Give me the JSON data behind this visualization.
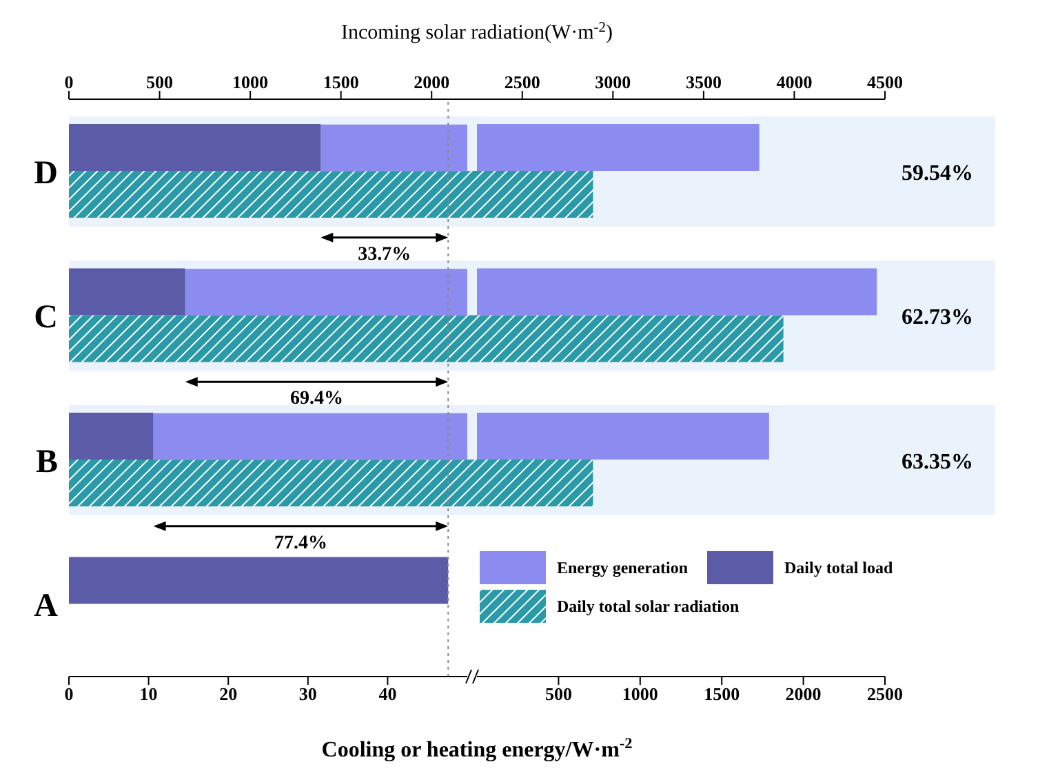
{
  "chart_data": [
    {
      "type": "bar",
      "orientation": "horizontal",
      "categories": [
        "D",
        "C",
        "B",
        "A"
      ],
      "series": [
        {
          "name": "Daily total load",
          "color": "#5b5ba8",
          "values": [
            31.6,
            14.6,
            10.6,
            47.6
          ]
        },
        {
          "name": "Daily total solar radiation",
          "color": "#2a9aa8",
          "values": [
            2890,
            3940,
            2890,
            null
          ],
          "axis": "x2"
        }
      ],
      "xlabel": "Cooling or heating energy/W·m$^{-2}$",
      "x2label": "Incoming solar radiation(W·m$^{-2}$)",
      "xlim": [
        0,
        50
      ],
      "xticks": [
        0,
        10,
        20,
        30,
        40
      ],
      "x2lim": [
        0,
        4500
      ],
      "x2ticks": [
        0,
        500,
        1000,
        1500,
        2000,
        2500,
        3000,
        3500,
        4000,
        4500
      ],
      "ref_lines": [
        {
          "axis": "x",
          "value": 47.6,
          "line_style": "dotted",
          "color": "#888888"
        }
      ],
      "bands": [
        {
          "axis": "y",
          "from": "D",
          "to": "D",
          "color": "#eaf2fb"
        },
        {
          "axis": "y",
          "from": "C",
          "to": "C",
          "color": "#eaf2fb"
        },
        {
          "axis": "y",
          "from": "B",
          "to": "B",
          "color": "#eaf2fb"
        }
      ],
      "annotations": [
        "59.54%",
        "62.73%",
        "63.35%",
        "33.7%",
        "69.4%",
        "77.4%"
      ],
      "legend": "bottom right"
    },
    {
      "type": "bar",
      "orientation": "horizontal",
      "categories": [
        null,
        null,
        null,
        null
      ],
      "tick_labels": "x",
      "series": [
        {
          "name": "Energy generation",
          "color": "#8c8cf0",
          "values": [
            1730,
            2450,
            1790,
            null
          ]
        }
      ],
      "xlim": [
        0,
        2500
      ],
      "xticks": [
        500,
        1000,
        1500,
        2000,
        2500
      ]
    }
  ]
}
